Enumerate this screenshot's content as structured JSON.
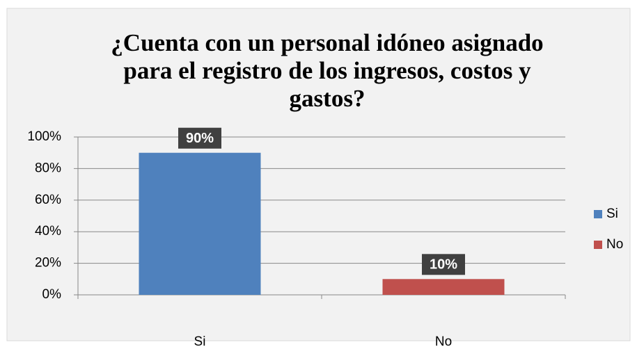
{
  "chart_data": {
    "type": "bar",
    "title": "¿Cuenta con un personal idóneo asignado para el registro de los ingresos, costos y gastos?",
    "categories": [
      "Si",
      "No"
    ],
    "values": [
      90,
      10
    ],
    "value_labels": [
      "90%",
      "10%"
    ],
    "colors": [
      "#4f81bd",
      "#c0504d"
    ],
    "ylim": [
      0,
      100
    ],
    "yticks": [
      {
        "value": 0,
        "label": "0%"
      },
      {
        "value": 20,
        "label": "20%"
      },
      {
        "value": 40,
        "label": "40%"
      },
      {
        "value": 60,
        "label": "60%"
      },
      {
        "value": 80,
        "label": "80%"
      },
      {
        "value": 100,
        "label": "100%"
      }
    ],
    "grid": true,
    "legend": "right"
  }
}
